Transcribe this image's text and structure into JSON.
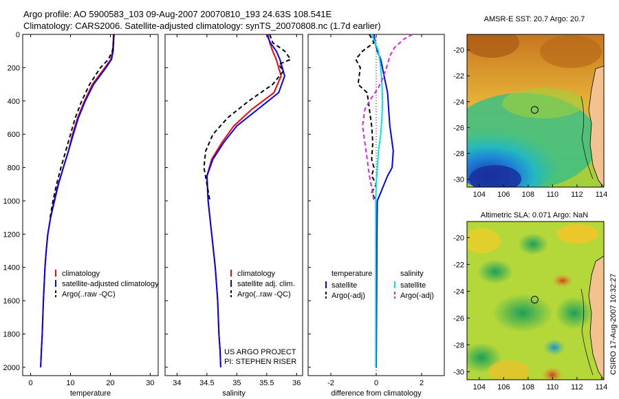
{
  "header": {
    "line1": "Argo profile: AO 5900583_103 09-Aug-2007 20070810_193 24.63S 108.541E",
    "line2": "Climatology: CARS2006. Satellite-adjusted climatology: synTS_20070808.nc (1.7d earlier)"
  },
  "side_label": "CSIRO 17-Aug-2007 10:32:27",
  "colors": {
    "climatology": "#ff0000",
    "satellite": "#0000ff",
    "argo": "#000000",
    "salinity_sat": "#00e5e5",
    "salinity_argo": "#e51ee5"
  },
  "chart_data": [
    {
      "id": "temperature",
      "type": "line",
      "xlabel": "temperature",
      "ylabel": "",
      "xlim": [
        -2,
        32
      ],
      "ylim": [
        2050,
        0
      ],
      "xticks": [
        "0",
        "10",
        "20",
        "30"
      ],
      "xtick_values": [
        0,
        10,
        20,
        30
      ],
      "yticks": [
        "0",
        "200",
        "400",
        "600",
        "800",
        "1000",
        "1200",
        "1400",
        "1600",
        "1800",
        "2000"
      ],
      "ytick_values": [
        0,
        200,
        400,
        600,
        800,
        1000,
        1200,
        1400,
        1600,
        1800,
        2000
      ],
      "legend": [
        "climatology",
        "satellite-adjusted climatology",
        "Argo(..raw -QC)"
      ],
      "legend_position": "lower-right",
      "series": [
        {
          "name": "climatology",
          "color": "#ff0000",
          "dash": "",
          "x": [
            20.8,
            20.7,
            20.6,
            20.1,
            18.6,
            15.5,
            13.5,
            11.8,
            10.5,
            9.5,
            8.2,
            7.0,
            6.0,
            5.0,
            4.3,
            3.9,
            3.6,
            3.2,
            2.9,
            2.7,
            2.5
          ],
          "y": [
            0,
            50,
            100,
            150,
            200,
            300,
            400,
            500,
            600,
            700,
            800,
            900,
            1000,
            1100,
            1200,
            1300,
            1400,
            1600,
            1800,
            1900,
            2000
          ]
        },
        {
          "name": "satellite-adjusted climatology",
          "color": "#0000ff",
          "dash": "",
          "x": [
            20.9,
            20.8,
            20.7,
            20.3,
            18.9,
            15.8,
            13.7,
            12.0,
            10.7,
            9.5,
            8.2,
            6.9,
            5.9,
            5.0,
            4.3,
            3.9,
            3.6,
            3.2,
            2.9,
            2.7,
            2.5
          ],
          "y": [
            0,
            50,
            100,
            150,
            200,
            300,
            400,
            500,
            600,
            700,
            800,
            900,
            1000,
            1100,
            1200,
            1300,
            1400,
            1600,
            1800,
            1900,
            2000
          ]
        },
        {
          "name": "Argo(..raw -QC)",
          "color": "#000000",
          "dash": "6,4",
          "x": [
            20.9,
            20.8,
            20.5,
            19.5,
            17.5,
            14.8,
            12.8,
            11.2,
            10.0,
            8.8,
            7.6,
            6.5,
            5.6,
            4.9
          ],
          "y": [
            0,
            50,
            100,
            150,
            200,
            300,
            400,
            500,
            600,
            700,
            800,
            900,
            1000,
            1100
          ]
        }
      ],
      "annotations": []
    },
    {
      "id": "salinity",
      "type": "line",
      "xlabel": "salinity",
      "ylabel": "",
      "xlim": [
        33.8,
        36.1
      ],
      "ylim": [
        2050,
        0
      ],
      "xticks": [
        "34",
        "34.5",
        "35",
        "35.5",
        "36"
      ],
      "xtick_values": [
        34,
        34.5,
        35,
        35.5,
        36
      ],
      "yticks": [],
      "ytick_values": [],
      "legend": [
        "climatology",
        "satellite adj. clim.",
        "Argo(..raw -QC)"
      ],
      "legend_position": "lower-right",
      "series": [
        {
          "name": "climatology",
          "color": "#ff0000",
          "dash": "",
          "x": [
            35.52,
            35.55,
            35.6,
            35.66,
            35.74,
            35.62,
            35.25,
            34.95,
            34.75,
            34.58,
            34.5,
            34.52,
            34.58,
            34.64,
            34.68,
            34.7,
            34.72,
            34.73
          ],
          "y": [
            0,
            50,
            100,
            150,
            250,
            350,
            450,
            550,
            650,
            750,
            850,
            1000,
            1200,
            1400,
            1600,
            1800,
            1900,
            2000
          ]
        },
        {
          "name": "satellite adj. clim.",
          "color": "#0000ff",
          "dash": "",
          "x": [
            35.5,
            35.56,
            35.66,
            35.72,
            35.8,
            35.7,
            35.35,
            35.0,
            34.78,
            34.6,
            34.5,
            34.52,
            34.58,
            34.64,
            34.68,
            34.7,
            34.72,
            34.73
          ],
          "y": [
            0,
            50,
            100,
            150,
            250,
            350,
            450,
            550,
            650,
            750,
            850,
            1000,
            1200,
            1400,
            1600,
            1800,
            1900,
            2000
          ]
        },
        {
          "name": "Argo(..raw -QC)",
          "color": "#000000",
          "dash": "6,4",
          "x": [
            35.55,
            35.6,
            35.8,
            35.9,
            35.7,
            35.78,
            35.6,
            35.2,
            34.85,
            34.6,
            34.48,
            34.45,
            34.5,
            34.55
          ],
          "y": [
            0,
            50,
            100,
            150,
            180,
            220,
            300,
            400,
            500,
            600,
            700,
            800,
            900,
            1000
          ]
        }
      ],
      "annotations": [
        "US ARGO PROJECT",
        "PI: STEPHEN RISER"
      ]
    },
    {
      "id": "difference",
      "type": "line",
      "xlabel": "difference from climatology",
      "ylabel": "",
      "xlim": [
        -3,
        3
      ],
      "ylim": [
        2050,
        0
      ],
      "xticks": [
        "-2",
        "0",
        "2"
      ],
      "xtick_values": [
        -2,
        0,
        2
      ],
      "yticks": [],
      "ytick_values": [],
      "legend_groups": [
        {
          "heading": "temperature",
          "items": [
            "satellite",
            "Argo(-adj)"
          ]
        },
        {
          "heading": "salinity",
          "items": [
            "satellite",
            "Argo(-adj)"
          ]
        }
      ],
      "legend_position": "lower-center",
      "series": [
        {
          "name": "temperature satellite",
          "color": "#0000ff",
          "dash": "",
          "x": [
            -0.1,
            -0.05,
            0.05,
            0.2,
            0.35,
            0.5,
            0.55,
            0.6,
            0.65,
            0.75,
            0.7,
            0.5,
            0.35,
            0.2,
            0.05,
            0.03,
            0.02,
            0.01,
            0
          ],
          "y": [
            0,
            50,
            100,
            150,
            250,
            350,
            450,
            550,
            600,
            700,
            800,
            850,
            900,
            950,
            1000,
            1200,
            1500,
            1800,
            2000
          ]
        },
        {
          "name": "temperature Argo(-adj)",
          "color": "#000000",
          "dash": "6,4",
          "x": [
            -0.3,
            -0.1,
            -0.6,
            -0.9,
            -0.7,
            -0.8,
            -0.4,
            -0.3,
            -0.2,
            -0.15,
            -0.2,
            -0.1,
            -0.2,
            0,
            -0.2,
            0
          ],
          "y": [
            0,
            50,
            100,
            150,
            200,
            300,
            350,
            450,
            550,
            650,
            750,
            800,
            850,
            900,
            950,
            1000
          ]
        },
        {
          "name": "salinity satellite",
          "color": "#00e5e5",
          "dash": "",
          "x": [
            -0.2,
            -0.05,
            0.1,
            0.2,
            0.25,
            0.28,
            0.25,
            0.2,
            0.1,
            0.05,
            0.0,
            -0.02,
            -0.02,
            -0.02,
            -0.02
          ],
          "y": [
            0,
            50,
            100,
            200,
            300,
            400,
            500,
            600,
            700,
            800,
            900,
            1000,
            1400,
            1800,
            2000
          ]
        },
        {
          "name": "salinity Argo(-adj)",
          "color": "#e51ee5",
          "dash": "6,4",
          "x": [
            1.6,
            1.2,
            0.8,
            0.6,
            0.5,
            0.3,
            0.1,
            -0.2,
            -0.5,
            -0.6,
            -0.5,
            -0.4,
            -0.3,
            -0.15,
            -0.1
          ],
          "y": [
            0,
            30,
            80,
            130,
            180,
            260,
            320,
            380,
            450,
            550,
            650,
            750,
            850,
            950,
            1000
          ]
        }
      ],
      "annotations": []
    },
    {
      "id": "sst_map",
      "type": "heatmap",
      "title": "AMSR-E SST: 20.7   Argo: 20.7",
      "xlim": [
        103,
        114.2
      ],
      "ylim": [
        -30.6,
        -18.8
      ],
      "xticks": [
        "104",
        "106",
        "108",
        "110",
        "112",
        "114"
      ],
      "xtick_values": [
        104,
        106,
        108,
        110,
        112,
        114
      ],
      "yticks": [
        "-20",
        "-22",
        "-24",
        "-26",
        "-28",
        "-30"
      ],
      "ytick_values": [
        -20,
        -22,
        -24,
        -26,
        -28,
        -30
      ],
      "marker": {
        "lon": 108.54,
        "lat": -24.63
      }
    },
    {
      "id": "sla_map",
      "type": "heatmap",
      "title": "Altimetric SLA: 0.071   Argo: NaN",
      "xlim": [
        103,
        114.2
      ],
      "ylim": [
        -30.6,
        -18.8
      ],
      "xticks": [
        "104",
        "106",
        "108",
        "110",
        "112",
        "114"
      ],
      "xtick_values": [
        104,
        106,
        108,
        110,
        112,
        114
      ],
      "yticks": [
        "-20",
        "-22",
        "-24",
        "-26",
        "-28",
        "-30"
      ],
      "ytick_values": [
        -20,
        -22,
        -24,
        -26,
        -28,
        -30
      ],
      "marker": {
        "lon": 108.54,
        "lat": -24.63
      }
    }
  ]
}
